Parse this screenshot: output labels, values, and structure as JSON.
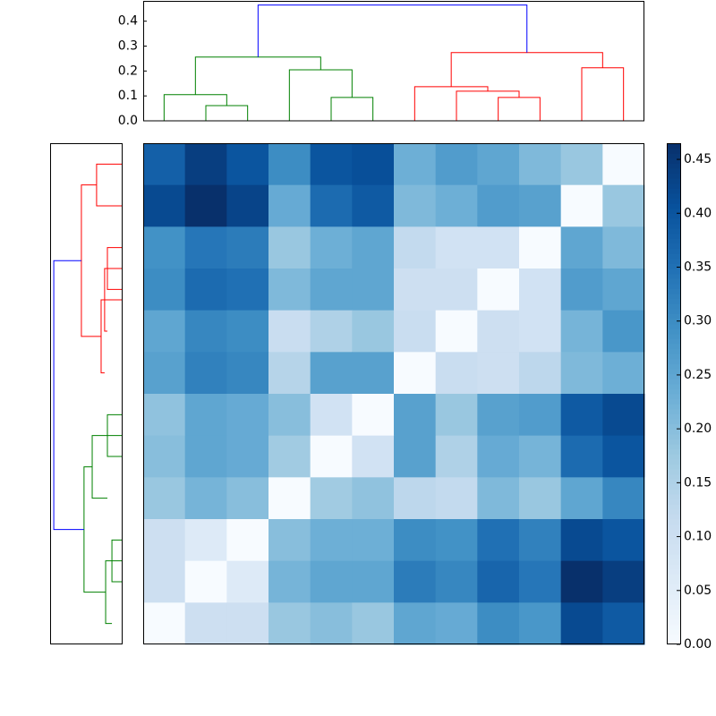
{
  "chart_data": [
    {
      "type": "heatmap",
      "values": [
        [
          0.38,
          0.44,
          0.4,
          0.3,
          0.4,
          0.41,
          0.23,
          0.27,
          0.25,
          0.21,
          0.18,
          0.0
        ],
        [
          0.42,
          0.465,
          0.43,
          0.24,
          0.36,
          0.39,
          0.21,
          0.23,
          0.27,
          0.26,
          0.0,
          0.18
        ],
        [
          0.29,
          0.34,
          0.33,
          0.18,
          0.23,
          0.25,
          0.12,
          0.09,
          0.09,
          0.0,
          0.25,
          0.21
        ],
        [
          0.3,
          0.36,
          0.35,
          0.21,
          0.25,
          0.25,
          0.1,
          0.1,
          0.0,
          0.09,
          0.27,
          0.25
        ],
        [
          0.25,
          0.31,
          0.3,
          0.11,
          0.15,
          0.18,
          0.11,
          0.0,
          0.1,
          0.09,
          0.22,
          0.28
        ],
        [
          0.26,
          0.32,
          0.31,
          0.14,
          0.26,
          0.26,
          0.0,
          0.11,
          0.1,
          0.13,
          0.21,
          0.23
        ],
        [
          0.19,
          0.25,
          0.24,
          0.2,
          0.09,
          0.0,
          0.26,
          0.18,
          0.26,
          0.27,
          0.39,
          0.42
        ],
        [
          0.2,
          0.25,
          0.24,
          0.17,
          0.0,
          0.09,
          0.26,
          0.15,
          0.24,
          0.22,
          0.36,
          0.4
        ],
        [
          0.18,
          0.22,
          0.2,
          0.0,
          0.17,
          0.19,
          0.13,
          0.12,
          0.21,
          0.18,
          0.25,
          0.31
        ],
        [
          0.1,
          0.06,
          0.0,
          0.2,
          0.23,
          0.23,
          0.3,
          0.29,
          0.35,
          0.32,
          0.42,
          0.4
        ],
        [
          0.1,
          0.0,
          0.06,
          0.22,
          0.25,
          0.25,
          0.33,
          0.31,
          0.37,
          0.34,
          0.465,
          0.44
        ],
        [
          0.0,
          0.1,
          0.1,
          0.18,
          0.2,
          0.18,
          0.25,
          0.24,
          0.3,
          0.28,
          0.42,
          0.39
        ]
      ],
      "clim": [
        0,
        0.465
      ],
      "colormap": [
        "#f7fbff",
        "#deebf7",
        "#c6dbef",
        "#9ecae1",
        "#6baed6",
        "#4292c6",
        "#2171b5",
        "#08519c",
        "#08306b"
      ],
      "colorbar_ticks": [
        {
          "value": 0,
          "label": "0.00"
        },
        {
          "value": 0.05,
          "label": "0.05"
        },
        {
          "value": 0.1,
          "label": "0.10"
        },
        {
          "value": 0.15,
          "label": "0.15"
        },
        {
          "value": 0.2,
          "label": "0.20"
        },
        {
          "value": 0.25,
          "label": "0.25"
        },
        {
          "value": 0.3,
          "label": "0.30"
        },
        {
          "value": 0.35,
          "label": "0.35"
        },
        {
          "value": 0.4,
          "label": "0.40"
        },
        {
          "value": 0.45,
          "label": "0.45"
        }
      ]
    },
    {
      "type": "dendrogram",
      "orientation": "top",
      "ylim": [
        0,
        0.485
      ],
      "yticks": [
        {
          "value": 0,
          "label": "0.0"
        },
        0.1,
        0.2,
        0.3,
        0.4
      ],
      "leaflim": [
        0,
        120
      ],
      "links": [
        {
          "color": "#008000",
          "leaf": [
            15,
            15,
            25,
            25
          ],
          "height": [
            0,
            0.061,
            0.061,
            0
          ]
        },
        {
          "color": "#008000",
          "leaf": [
            5,
            5,
            20,
            20
          ],
          "height": [
            0,
            0.105,
            0.105,
            0.061
          ]
        },
        {
          "color": "#008000",
          "leaf": [
            45,
            45,
            55,
            55
          ],
          "height": [
            0,
            0.094,
            0.094,
            0
          ]
        },
        {
          "color": "#008000",
          "leaf": [
            35,
            35,
            50,
            50
          ],
          "height": [
            0,
            0.205,
            0.205,
            0.094
          ]
        },
        {
          "color": "#008000",
          "leaf": [
            12.5,
            12.5,
            42.5,
            42.5
          ],
          "height": [
            0.105,
            0.256,
            0.256,
            0.205
          ]
        },
        {
          "color": "#ff0000",
          "leaf": [
            85,
            85,
            95,
            95
          ],
          "height": [
            0,
            0.094,
            0.094,
            0
          ]
        },
        {
          "color": "#ff0000",
          "leaf": [
            75,
            75,
            90,
            90
          ],
          "height": [
            0,
            0.119,
            0.119,
            0.094
          ]
        },
        {
          "color": "#ff0000",
          "leaf": [
            65,
            65,
            82.5,
            82.5
          ],
          "height": [
            0,
            0.137,
            0.137,
            0.119
          ]
        },
        {
          "color": "#ff0000",
          "leaf": [
            105,
            105,
            115,
            115
          ],
          "height": [
            0,
            0.213,
            0.213,
            0
          ]
        },
        {
          "color": "#ff0000",
          "leaf": [
            73.75,
            73.75,
            110,
            110
          ],
          "height": [
            0.137,
            0.274,
            0.274,
            0.213
          ]
        },
        {
          "color": "#0000ff",
          "leaf": [
            27.5,
            27.5,
            91.875,
            91.875
          ],
          "height": [
            0.256,
            0.465,
            0.465,
            0.274
          ]
        }
      ]
    },
    {
      "type": "dendrogram",
      "orientation": "left",
      "xlim": [
        0.49,
        0
      ],
      "leaflim": [
        0,
        120
      ],
      "links": [
        {
          "color": "#ff0000",
          "leaf": [
            5,
            5,
            15,
            15
          ],
          "height": [
            0,
            0.172,
            0.172,
            0
          ]
        },
        {
          "color": "#ff0000",
          "leaf": [
            25,
            25,
            35,
            35
          ],
          "height": [
            0,
            0.098,
            0.098,
            0
          ]
        },
        {
          "color": "#ff0000",
          "leaf": [
            30,
            30,
            45,
            45
          ],
          "height": [
            0,
            0.117,
            0.117,
            0.098
          ]
        },
        {
          "color": "#ff0000",
          "leaf": [
            37.5,
            37.5,
            55,
            55
          ],
          "height": [
            0,
            0.141,
            0.141,
            0.117
          ]
        },
        {
          "color": "#ff0000",
          "leaf": [
            10,
            10,
            46.25,
            46.25
          ],
          "height": [
            0.172,
            0.276,
            0.276,
            0.141
          ]
        },
        {
          "color": "#008000",
          "leaf": [
            65,
            65,
            75,
            75
          ],
          "height": [
            0,
            0.098,
            0.098,
            0
          ]
        },
        {
          "color": "#008000",
          "leaf": [
            70,
            70,
            85,
            85
          ],
          "height": [
            0,
            0.202,
            0.202,
            0.098
          ]
        },
        {
          "color": "#008000",
          "leaf": [
            95,
            95,
            105,
            105
          ],
          "height": [
            0,
            0.067,
            0.067,
            0
          ]
        },
        {
          "color": "#008000",
          "leaf": [
            100,
            100,
            115,
            115
          ],
          "height": [
            0,
            0.11,
            0.11,
            0.067
          ]
        },
        {
          "color": "#008000",
          "leaf": [
            77.5,
            77.5,
            107.5,
            107.5
          ],
          "height": [
            0.202,
            0.258,
            0.258,
            0.11
          ]
        },
        {
          "color": "#0000ff",
          "leaf": [
            28.125,
            28.125,
            92.5,
            92.5
          ],
          "height": [
            0.276,
            0.465,
            0.465,
            0.258
          ]
        }
      ]
    }
  ]
}
